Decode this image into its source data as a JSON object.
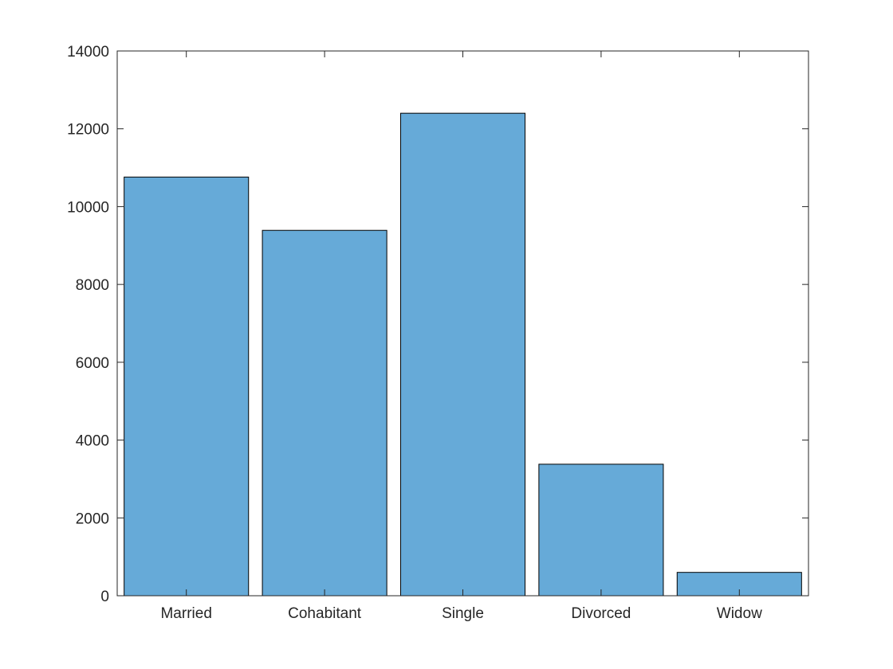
{
  "chart_data": {
    "type": "bar",
    "title": "",
    "xlabel": "",
    "ylabel": "",
    "categories": [
      "Married",
      "Cohabitant",
      "Single",
      "Divorced",
      "Widow"
    ],
    "values": [
      10760,
      9390,
      12400,
      3380,
      600
    ],
    "ylim": [
      0,
      14000
    ],
    "yticks": [
      0,
      2000,
      4000,
      6000,
      8000,
      10000,
      12000,
      14000
    ],
    "grid": false,
    "legend": "none",
    "colors": {
      "bar_fill": "#66aad8",
      "bar_edge": "#000000",
      "axis": "#262626",
      "background": "#ffffff"
    }
  }
}
